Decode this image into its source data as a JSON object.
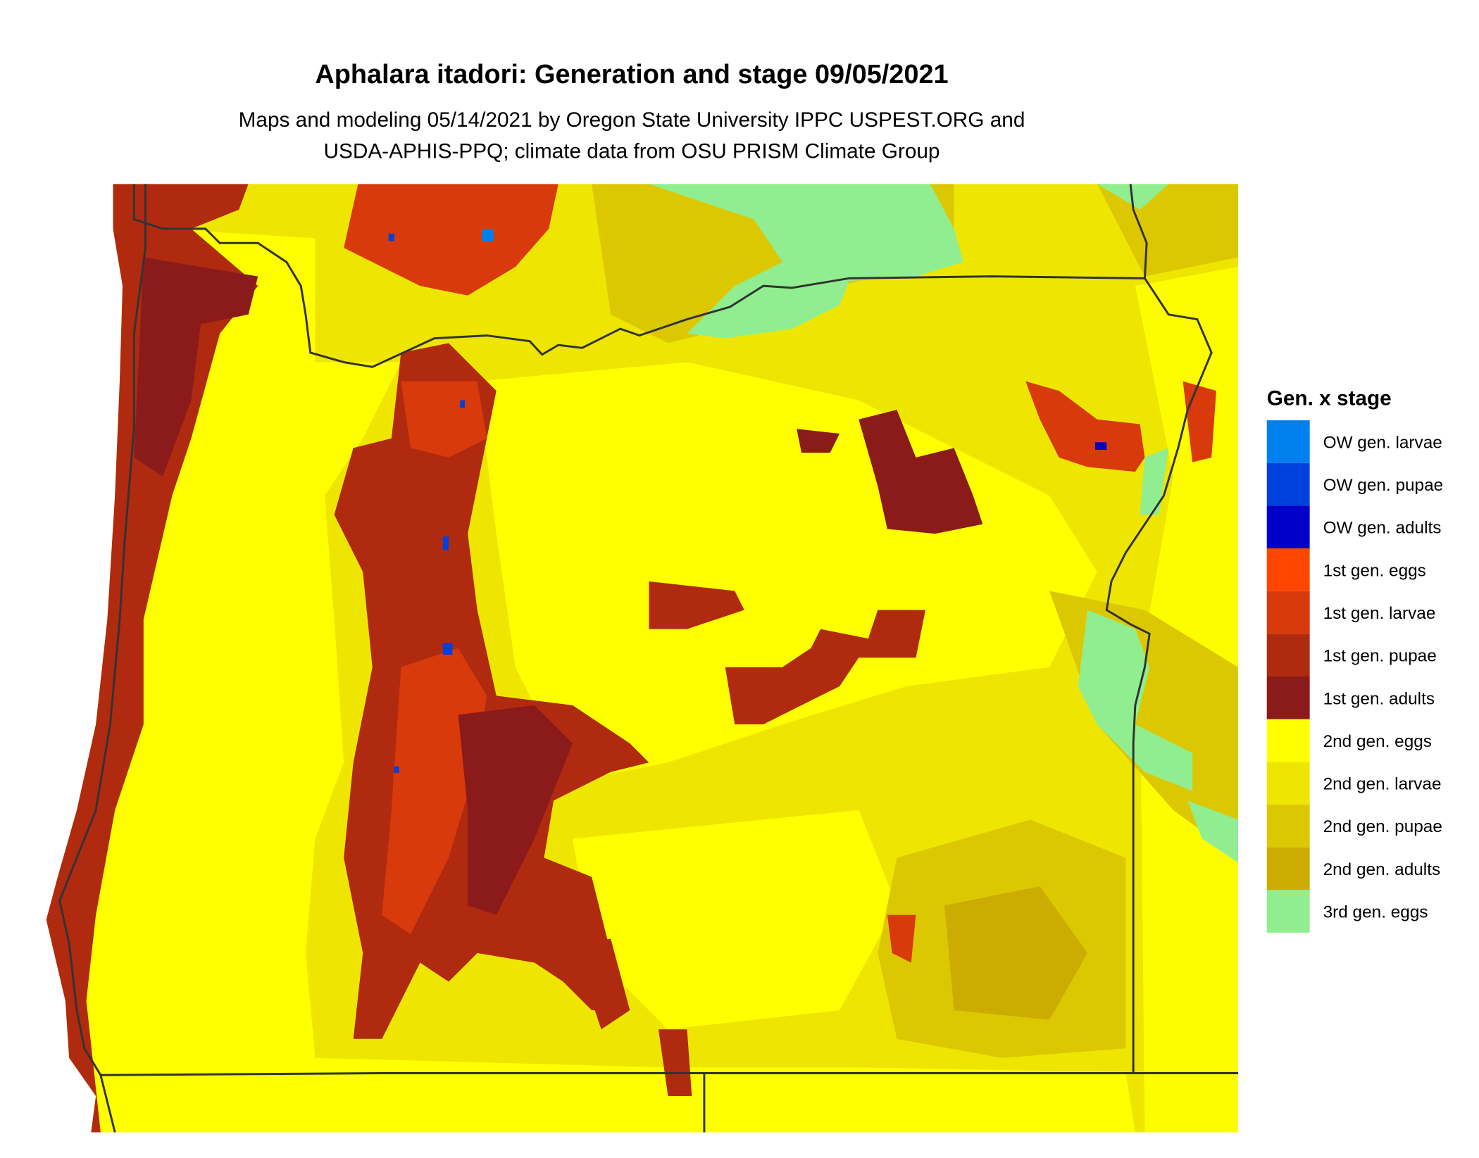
{
  "title": "Aphalara itadori: Generation and stage 09/05/2021",
  "subtitle": [
    "Maps and modeling 05/14/2021 by Oregon State University IPPC USPEST.ORG and",
    "USDA-APHIS-PPQ; climate data from OSU PRISM Climate Group"
  ],
  "legend": {
    "title": "Gen. x stage",
    "items": [
      {
        "label": "OW gen. larvae",
        "color": "#0080ee"
      },
      {
        "label": "OW gen. pupae",
        "color": "#0040dd"
      },
      {
        "label": "OW gen. adults",
        "color": "#0000c8"
      },
      {
        "label": "1st gen. eggs",
        "color": "#ff4500"
      },
      {
        "label": "1st gen. larvae",
        "color": "#d83a0c"
      },
      {
        "label": "1st gen. pupae",
        "color": "#b02a10"
      },
      {
        "label": "1st gen. adults",
        "color": "#8b1a1a"
      },
      {
        "label": "2nd gen. eggs",
        "color": "#ffff00"
      },
      {
        "label": "2nd gen. larvae",
        "color": "#eee600"
      },
      {
        "label": "2nd gen. pupae",
        "color": "#dcc800"
      },
      {
        "label": "2nd gen. adults",
        "color": "#ccac00"
      },
      {
        "label": "3rd gen. eggs",
        "color": "#90ee90"
      }
    ]
  },
  "chart_data": {
    "type": "heatmap",
    "region": "Oregon",
    "date": "09/05/2021",
    "legend_placement": "right",
    "categories": [
      "OW gen. larvae",
      "OW gen. pupae",
      "OW gen. adults",
      "1st gen. eggs",
      "1st gen. larvae",
      "1st gen. pupae",
      "1st gen. adults",
      "2nd gen. eggs",
      "2nd gen. larvae",
      "2nd gen. pupae",
      "2nd gen. adults",
      "3rd gen. eggs"
    ]
  }
}
